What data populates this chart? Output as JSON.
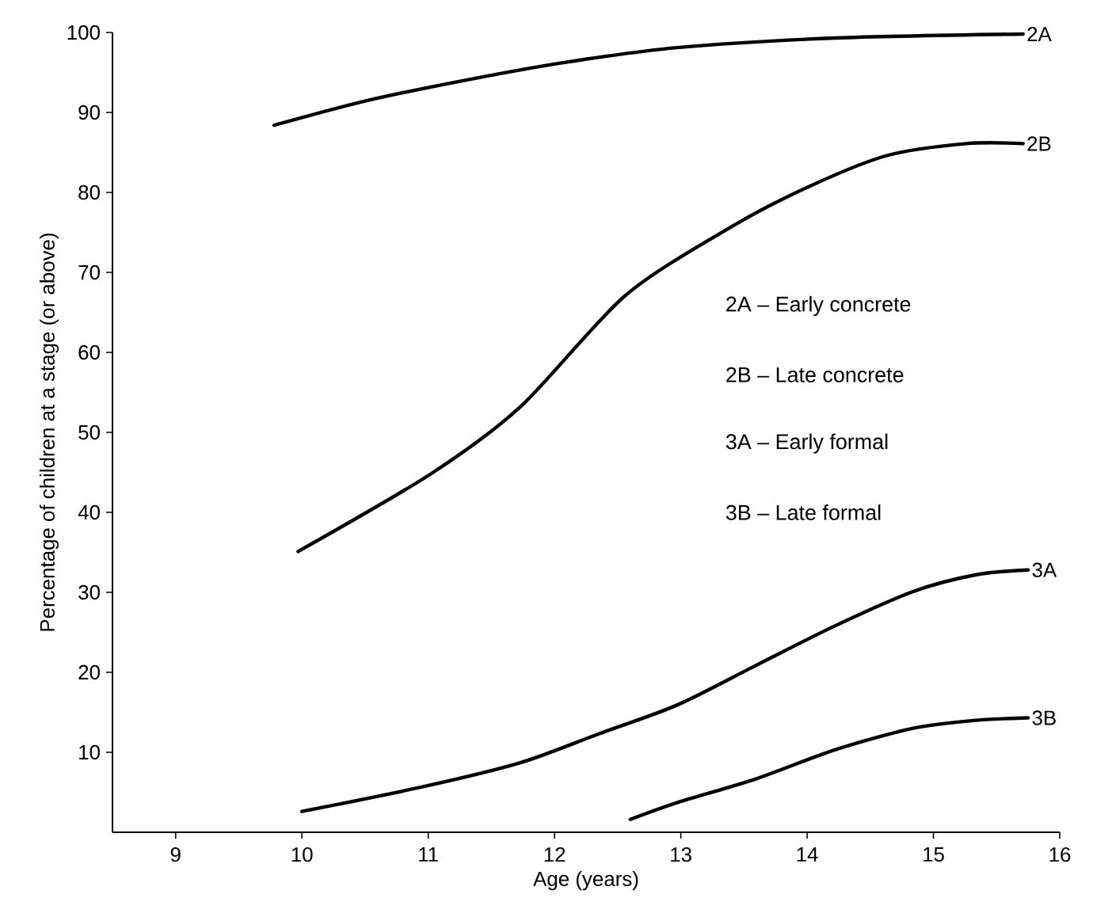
{
  "chart_data": {
    "type": "line",
    "xlabel": "Age (years)",
    "ylabel": "Percentage of children at a stage (or above)",
    "xlim": [
      8.5,
      16
    ],
    "ylim": [
      0,
      100
    ],
    "xticks": [
      9,
      10,
      11,
      12,
      13,
      14,
      15,
      16
    ],
    "yticks": [
      10,
      20,
      30,
      40,
      50,
      60,
      70,
      80,
      90,
      100
    ],
    "legend": false,
    "grid": false,
    "marker": "none",
    "line_style": "solid",
    "annotations": [
      "2A – Early concrete",
      "2B – Late concrete",
      "3A – Early formal",
      "3B – Late formal"
    ],
    "series": [
      {
        "name": "2A",
        "color": "#000000",
        "x": [
          9.78,
          10.52,
          11.35,
          12.1,
          12.97,
          14.22,
          15.71
        ],
        "values": [
          88.4,
          91.5,
          94.2,
          96.3,
          98.1,
          99.3,
          99.8
        ]
      },
      {
        "name": "2B",
        "color": "#000000",
        "x": [
          9.97,
          11.02,
          11.73,
          12.56,
          13.4,
          14.01,
          14.63,
          15.26,
          15.71
        ],
        "values": [
          35.1,
          44.8,
          53.2,
          67.1,
          75.7,
          80.7,
          84.6,
          86.1,
          86.1
        ]
      },
      {
        "name": "3A",
        "color": "#000000",
        "x": [
          10.0,
          10.96,
          11.73,
          12.35,
          12.97,
          13.6,
          14.22,
          14.84,
          15.34,
          15.75
        ],
        "values": [
          2.6,
          5.7,
          8.7,
          12.3,
          15.9,
          20.9,
          25.8,
          30.1,
          32.2,
          32.8
        ]
      },
      {
        "name": "3B",
        "color": "#000000",
        "x": [
          12.6,
          12.97,
          13.6,
          14.22,
          14.84,
          15.34,
          15.75
        ],
        "values": [
          1.6,
          3.7,
          6.7,
          10.3,
          13.0,
          14.0,
          14.3
        ]
      }
    ]
  }
}
